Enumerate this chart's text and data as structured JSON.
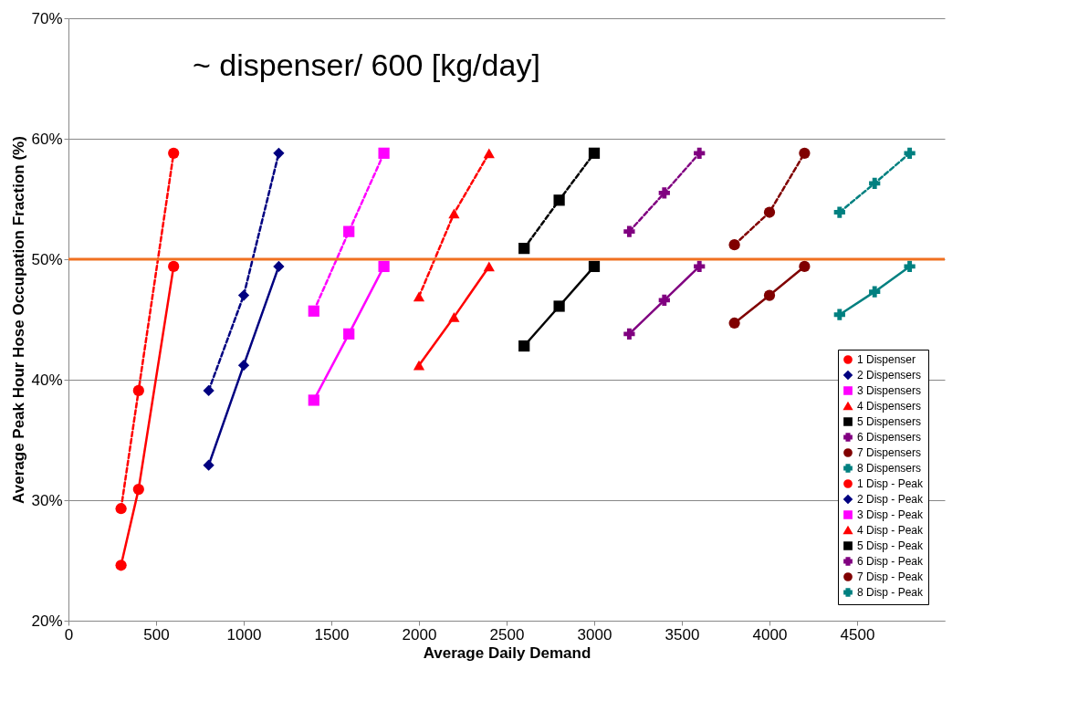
{
  "chart_data": {
    "type": "line",
    "xlabel": "Average Daily Demand",
    "ylabel": "Average Peak Hour Hose Occupation Fraction (%)",
    "annotations": [
      "~ dispenser/ 600 [kg/day]"
    ],
    "xlim": [
      0,
      5000
    ],
    "xticks": [
      0,
      500,
      1000,
      1500,
      2000,
      2500,
      3000,
      3500,
      4000,
      4500
    ],
    "ylim": [
      20,
      70
    ],
    "yticks": [
      {
        "value": 20,
        "label": "20%"
      },
      {
        "value": 30,
        "label": "30%"
      },
      {
        "value": 40,
        "label": "40%"
      },
      {
        "value": 50,
        "label": "50%"
      },
      {
        "value": 60,
        "label": "60%"
      },
      {
        "value": 70,
        "label": "70%"
      }
    ],
    "grid": "y",
    "legend": "bottom right",
    "ref_lines": [
      {
        "axis": "y",
        "value": 50,
        "color": "#f07020"
      }
    ],
    "series": [
      {
        "name": "1 Dispenser",
        "color": "#ff0000",
        "marker": "circle",
        "line_style": "solid",
        "x": [
          300,
          400,
          600
        ],
        "values": [
          24.6,
          30.9,
          49.4
        ]
      },
      {
        "name": "2 Dispensers",
        "color": "#000080",
        "marker": "diamond",
        "line_style": "solid",
        "x": [
          800,
          1000,
          1200
        ],
        "values": [
          32.9,
          41.2,
          49.4
        ]
      },
      {
        "name": "3 Dispensers",
        "color": "#ff00ff",
        "marker": "square",
        "line_style": "solid",
        "x": [
          1400,
          1600,
          1800
        ],
        "values": [
          38.3,
          43.8,
          49.4
        ]
      },
      {
        "name": "4 Dispensers",
        "color": "#ff0000",
        "marker": "triangle",
        "line_style": "solid",
        "x": [
          2000,
          2200,
          2400
        ],
        "values": [
          41.2,
          45.2,
          49.4
        ]
      },
      {
        "name": "5 Dispensers",
        "color": "#000000",
        "marker": "square",
        "line_style": "solid",
        "x": [
          2600,
          2800,
          3000
        ],
        "values": [
          42.8,
          46.1,
          49.4
        ]
      },
      {
        "name": "6 Dispensers",
        "color": "#800080",
        "marker": "cross",
        "line_style": "solid",
        "x": [
          3200,
          3400,
          3600
        ],
        "values": [
          43.8,
          46.6,
          49.4
        ]
      },
      {
        "name": "7 Dispensers",
        "color": "#800000",
        "marker": "circle",
        "line_style": "solid",
        "x": [
          3800,
          4000,
          4200
        ],
        "values": [
          44.7,
          47.0,
          49.4
        ]
      },
      {
        "name": "8 Dispensers",
        "color": "#008080",
        "marker": "cross",
        "line_style": "solid",
        "x": [
          4400,
          4600,
          4800
        ],
        "values": [
          45.4,
          47.3,
          49.4
        ]
      },
      {
        "name": "1 Disp - Peak",
        "color": "#ff0000",
        "marker": "circle",
        "line_style": "dashed",
        "x": [
          300,
          400,
          600
        ],
        "values": [
          29.3,
          39.1,
          58.8
        ]
      },
      {
        "name": "2 Disp - Peak",
        "color": "#000080",
        "marker": "diamond",
        "line_style": "dashed",
        "x": [
          800,
          1000,
          1200
        ],
        "values": [
          39.1,
          47.0,
          58.8
        ]
      },
      {
        "name": "3 Disp - Peak",
        "color": "#ff00ff",
        "marker": "square",
        "line_style": "dashed",
        "x": [
          1400,
          1600,
          1800
        ],
        "values": [
          45.7,
          52.3,
          58.8
        ]
      },
      {
        "name": "4 Disp - Peak",
        "color": "#ff0000",
        "marker": "triangle",
        "line_style": "dashed",
        "x": [
          2000,
          2200,
          2400
        ],
        "values": [
          46.9,
          53.8,
          58.8
        ]
      },
      {
        "name": "5 Disp - Peak",
        "color": "#000000",
        "marker": "square",
        "line_style": "dashed",
        "x": [
          2600,
          2800,
          3000
        ],
        "values": [
          50.9,
          54.9,
          58.8
        ]
      },
      {
        "name": "6 Disp - Peak",
        "color": "#800080",
        "marker": "cross",
        "line_style": "dashed",
        "x": [
          3200,
          3400,
          3600
        ],
        "values": [
          52.3,
          55.5,
          58.8
        ]
      },
      {
        "name": "7 Disp - Peak",
        "color": "#800000",
        "marker": "circle",
        "line_style": "dashed",
        "x": [
          3800,
          4000,
          4200
        ],
        "values": [
          51.2,
          53.9,
          58.8
        ]
      },
      {
        "name": "8 Disp - Peak",
        "color": "#008080",
        "marker": "cross",
        "line_style": "dashed",
        "x": [
          4400,
          4600,
          4800
        ],
        "values": [
          53.9,
          56.3,
          58.8
        ]
      }
    ]
  }
}
